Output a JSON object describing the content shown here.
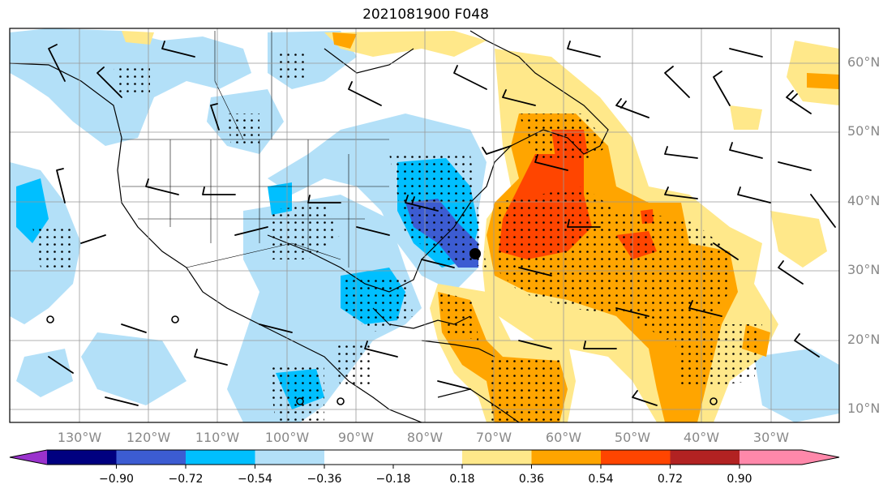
{
  "title": "2021081900 F048",
  "map": {
    "lat_labels": [
      "60°N",
      "50°N",
      "40°N",
      "30°N",
      "20°N",
      "10°N"
    ],
    "lon_labels": [
      "130°W",
      "120°W",
      "110°W",
      "100°W",
      "90°W",
      "80°W",
      "70°W",
      "60°W",
      "50°W",
      "40°W",
      "30°W"
    ],
    "colors": {
      "ocean_land": "#ffffff",
      "light_blue": "#b3e0f8",
      "blue": "#00bfff",
      "med_blue": "#3c5cd2",
      "navy": "#000080",
      "light_yellow": "#ffe88a",
      "orange": "#ffa500",
      "red_orange": "#ff4500",
      "gridline": "#999999",
      "coast": "#000000"
    }
  },
  "colorbar": {
    "tick_labels": [
      "−0.90",
      "−0.72",
      "−0.54",
      "−0.36",
      "−0.18",
      "0.18",
      "0.36",
      "0.54",
      "0.72",
      "0.90"
    ],
    "colors": [
      "#9a32cd",
      "#000080",
      "#3c5cd2",
      "#00bfff",
      "#b3e0f8",
      "#ffffff",
      "#ffe88a",
      "#ffa500",
      "#ff4500",
      "#b22222",
      "#ff88aa"
    ]
  }
}
